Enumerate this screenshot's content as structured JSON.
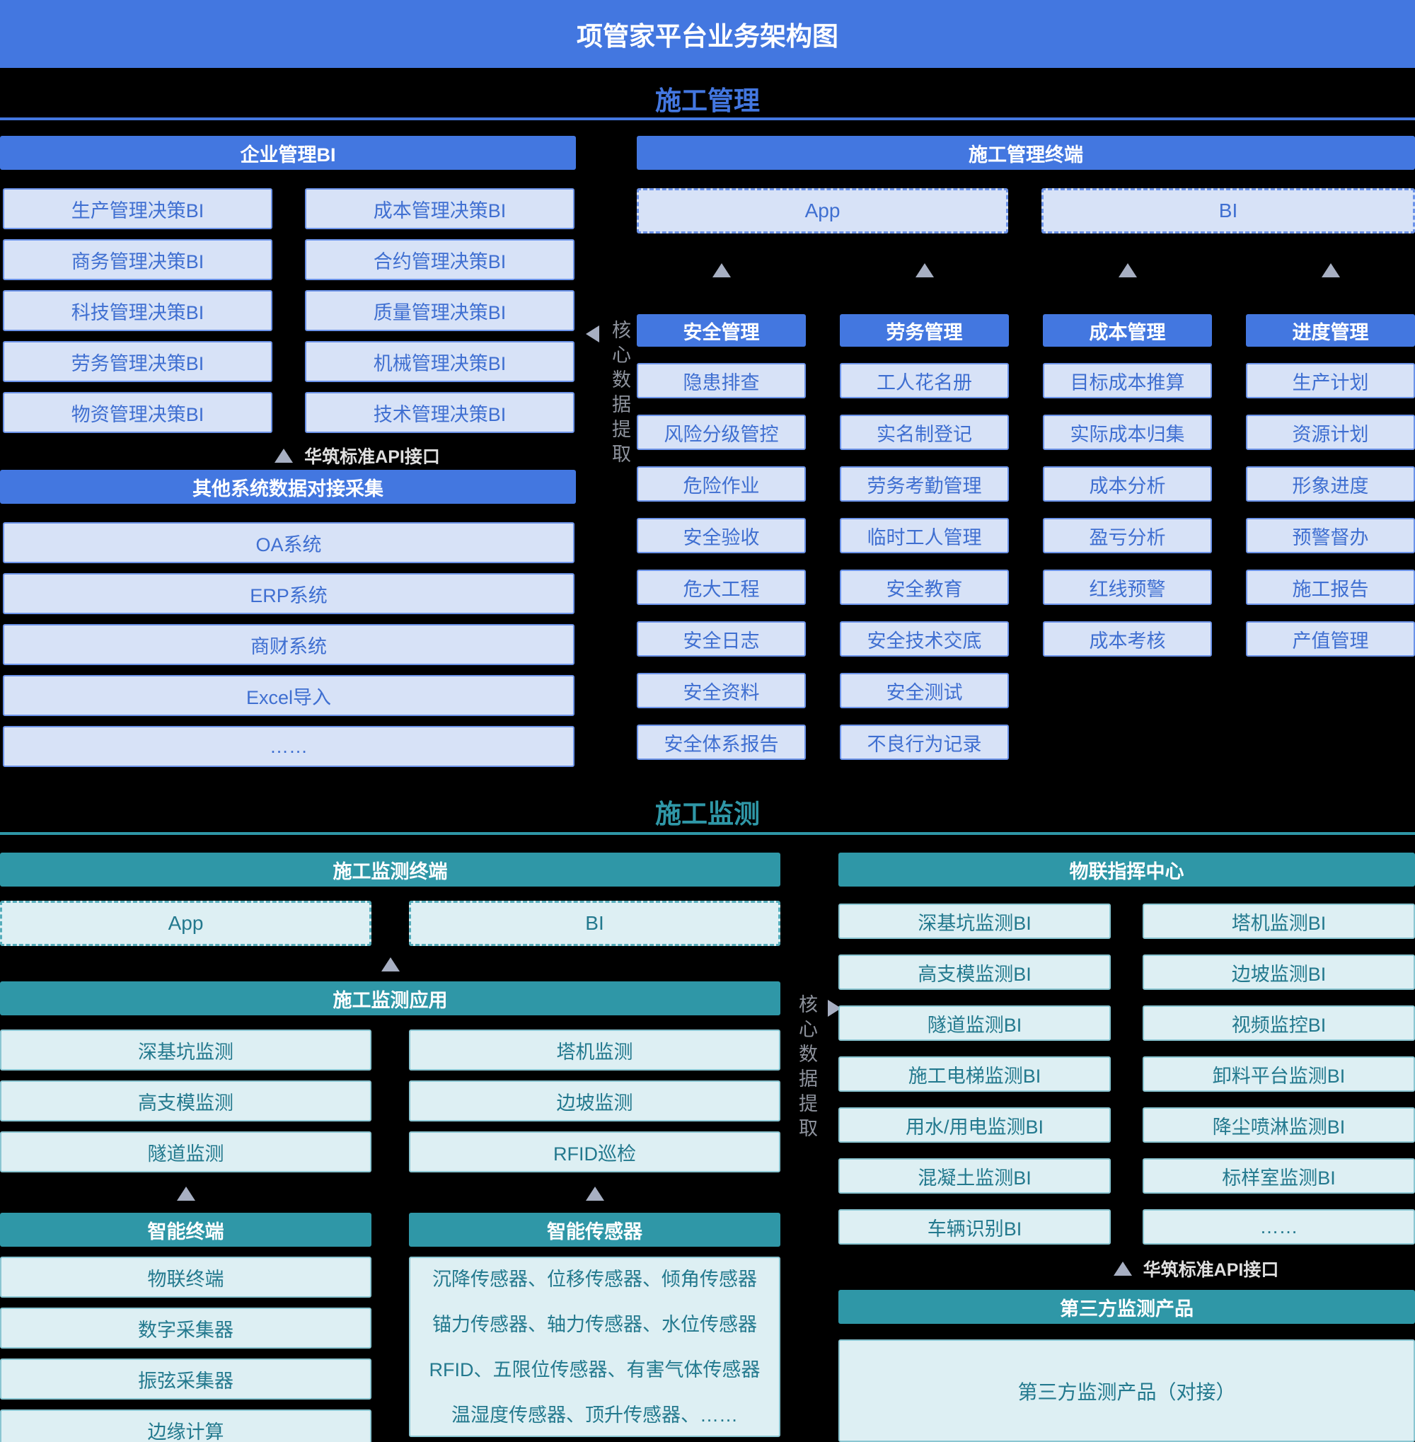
{
  "title": "项管家平台业务架构图",
  "management": {
    "title": "施工管理",
    "enterprise_bi": {
      "header": "企业管理BI",
      "items": [
        "生产管理决策BI",
        "成本管理决策BI",
        "商务管理决策BI",
        "合约管理决策BI",
        "科技管理决策BI",
        "质量管理决策BI",
        "劳务管理决策BI",
        "机械管理决策BI",
        "物资管理决策BI",
        "技术管理决策BI"
      ]
    },
    "api_label": "华筑标准API接口",
    "other_systems": {
      "header": "其他系统数据对接采集",
      "items": [
        "OA系统",
        "ERP系统",
        "商财系统",
        "Excel导入",
        "……"
      ]
    },
    "core_label": "核心数据提取",
    "terminal": {
      "header": "施工管理终端",
      "app_label": "App",
      "bi_label": "BI"
    },
    "columns": [
      {
        "header": "安全管理",
        "items": [
          "隐患排查",
          "风险分级管控",
          "危险作业",
          "安全验收",
          "危大工程",
          "安全日志",
          "安全资料",
          "安全体系报告"
        ]
      },
      {
        "header": "劳务管理",
        "items": [
          "工人花名册",
          "实名制登记",
          "劳务考勤管理",
          "临时工人管理",
          "安全教育",
          "安全技术交底",
          "安全测试",
          "不良行为记录"
        ]
      },
      {
        "header": "成本管理",
        "items": [
          "目标成本推算",
          "实际成本归集",
          "成本分析",
          "盈亏分析",
          "红线预警",
          "成本考核"
        ]
      },
      {
        "header": "进度管理",
        "items": [
          "生产计划",
          "资源计划",
          "形象进度",
          "预警督办",
          "施工报告",
          "产值管理"
        ]
      }
    ]
  },
  "monitoring": {
    "title": "施工监测",
    "terminal": {
      "header": "施工监测终端",
      "app_label": "App",
      "bi_label": "BI"
    },
    "application": {
      "header": "施工监测应用",
      "left_items": [
        "深基坑监测",
        "高支模监测",
        "隧道监测"
      ],
      "right_items": [
        "塔机监测",
        "边坡监测",
        "RFID巡检"
      ]
    },
    "smart_terminal": {
      "header": "智能终端",
      "items": [
        "物联终端",
        "数字采集器",
        "振弦采集器",
        "边缘计算"
      ]
    },
    "smart_sensor": {
      "header": "智能传感器",
      "lines": [
        "沉降传感器、位移传感器、倾角传感器",
        "锚力传感器、轴力传感器、水位传感器",
        "RFID、五限位传感器、有害气体传感器",
        "温湿度传感器、顶升传感器、……"
      ]
    },
    "core_label": "核心数据提取",
    "iot_center": {
      "header": "物联指挥中心",
      "left_items": [
        "深基坑监测BI",
        "高支模监测BI",
        "隧道监测BI",
        "施工电梯监测BI",
        "用水/用电监测BI",
        "混凝土监测BI",
        "车辆识别BI"
      ],
      "right_items": [
        "塔机监测BI",
        "边坡监测BI",
        "视频监控BI",
        "卸料平台监测BI",
        "降尘喷淋监测BI",
        "标样室监测BI",
        "……"
      ]
    },
    "api_label": "华筑标准API接口",
    "third_party": {
      "header": "第三方监测产品",
      "box_label": "第三方监测产品（对接）"
    }
  },
  "colors": {
    "blue": "#4377E0",
    "blue_light": "#D7E2F7",
    "blue_border": "#6B92E8",
    "blue_text": "#3F6FD1",
    "teal": "#2F97A7",
    "teal_light": "#DDEFF3",
    "teal_border": "#8AC6D2",
    "teal_text": "#23798E",
    "teal_dash": "#55ADBB",
    "arrow": "#A7AFC2",
    "label_gray": "#8D929C",
    "bg": "#000000",
    "api_text": "#DFDFDF"
  }
}
